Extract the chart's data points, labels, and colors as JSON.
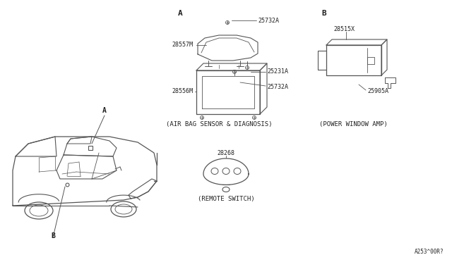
{
  "bg_color": "#ffffff",
  "line_color": "#555555",
  "text_color": "#222222",
  "figsize": [
    6.4,
    3.72
  ],
  "dpi": 100,
  "labels": {
    "A_car": "A",
    "B_car": "B",
    "A_diag": "A",
    "B_diag": "B",
    "part_25732A_top": "25732A",
    "part_28557M": "28557M",
    "part_25231A": "25231A",
    "part_25732A_bot": "25732A",
    "part_28556M": "28556M",
    "part_28515X": "28515X",
    "part_25905A": "25905A",
    "part_28268": "28268",
    "caption_airbag": "(AIR BAG SENSOR & DIAGNOSIS)",
    "caption_power": "(POWER WINDOW AMP)",
    "caption_remote": "(REMOTE SWITCH)",
    "part_num_ref": "A253^00R?"
  }
}
